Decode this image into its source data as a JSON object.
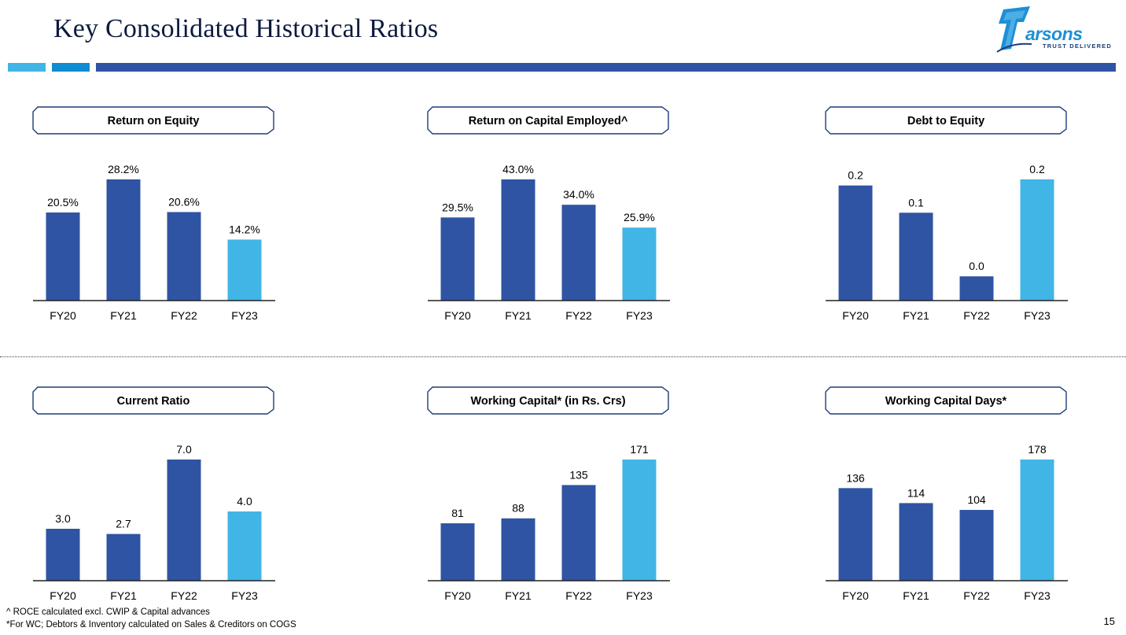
{
  "header": {
    "title": "Key Consolidated Historical Ratios",
    "accent_colors": [
      "#41b5e6",
      "#0f8cd2",
      "#2f54a3"
    ]
  },
  "logo": {
    "mark_letter": "T",
    "wordmark": "arsons",
    "tagline": "TRUST DELIVERED",
    "color": "#1e8fd6"
  },
  "colors": {
    "bar_dark": "#2f54a3",
    "bar_light": "#41b5e6",
    "axis": "#222222"
  },
  "chart_data": [
    {
      "type": "bar",
      "title": "Return on Equity",
      "categories": [
        "FY20",
        "FY21",
        "FY22",
        "FY23"
      ],
      "values": [
        20.5,
        28.2,
        20.6,
        14.2
      ],
      "labels": [
        "20.5%",
        "28.2%",
        "20.6%",
        "14.2%"
      ],
      "ylim": [
        0,
        28.2
      ]
    },
    {
      "type": "bar",
      "title": "Return on Capital Employed^",
      "categories": [
        "FY20",
        "FY21",
        "FY22",
        "FY23"
      ],
      "values": [
        29.5,
        43.0,
        34.0,
        25.9
      ],
      "labels": [
        "29.5%",
        "43.0%",
        "34.0%",
        "25.9%"
      ],
      "ylim": [
        0,
        43.0
      ]
    },
    {
      "type": "bar",
      "title": "Debt to Equity",
      "categories": [
        "FY20",
        "FY21",
        "FY22",
        "FY23"
      ],
      "values": [
        0.19,
        0.145,
        0.04,
        0.2
      ],
      "labels": [
        "0.2",
        "0.1",
        "0.0",
        "0.2"
      ],
      "ylim": [
        0,
        0.2
      ]
    },
    {
      "type": "bar",
      "title": "Current Ratio",
      "categories": [
        "FY20",
        "FY21",
        "FY22",
        "FY23"
      ],
      "values": [
        3.0,
        2.7,
        7.0,
        4.0
      ],
      "labels": [
        "3.0",
        "2.7",
        "7.0",
        "4.0"
      ],
      "ylim": [
        0,
        7.0
      ]
    },
    {
      "type": "bar",
      "title": "Working Capital* (in Rs. Crs)",
      "categories": [
        "FY20",
        "FY21",
        "FY22",
        "FY23"
      ],
      "values": [
        81,
        88,
        135,
        171
      ],
      "labels": [
        "81",
        "88",
        "135",
        "171"
      ],
      "ylim": [
        0,
        171
      ]
    },
    {
      "type": "bar",
      "title": "Working Capital Days*",
      "categories": [
        "FY20",
        "FY21",
        "FY22",
        "FY23"
      ],
      "values": [
        136,
        114,
        104,
        178
      ],
      "labels": [
        "136",
        "114",
        "104",
        "178"
      ],
      "ylim": [
        0,
        178
      ]
    }
  ],
  "footnotes": [
    "^ ROCE calculated excl. CWIP & Capital advances",
    "*For WC; Debtors & Inventory calculated on Sales & Creditors on COGS"
  ],
  "page_number": "15"
}
